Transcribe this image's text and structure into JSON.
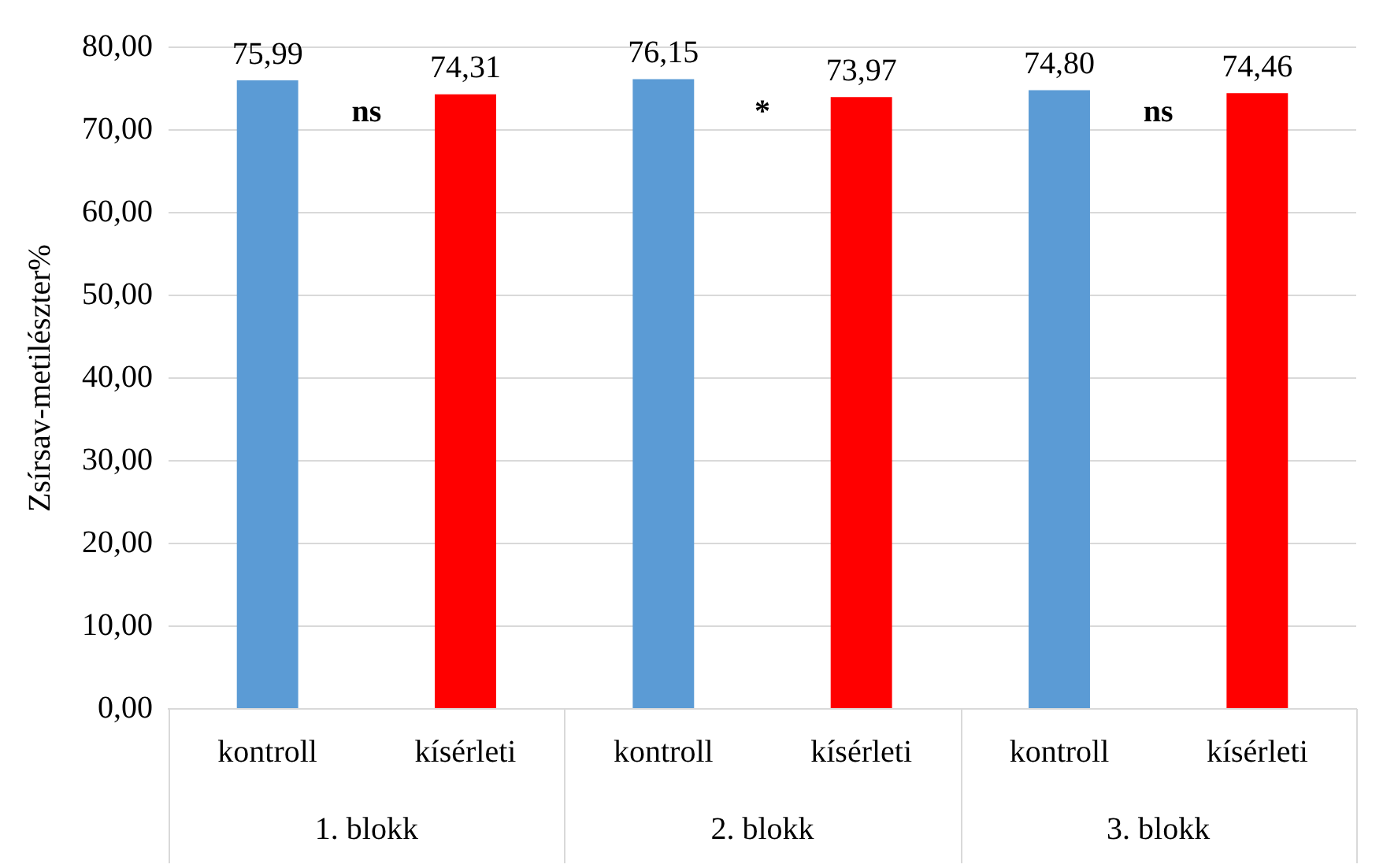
{
  "chart_data": {
    "type": "bar",
    "ylabel": "Zsírsav-metilészter%",
    "categories": [
      "kontroll",
      "kísérleti",
      "kontroll",
      "kísérleti",
      "kontroll",
      "kísérleti"
    ],
    "values": [
      75.99,
      74.31,
      76.15,
      73.97,
      74.8,
      74.46
    ],
    "colors": [
      "#5b9bd5",
      "#ff0000",
      "#5b9bd5",
      "#ff0000",
      "#5b9bd5",
      "#ff0000"
    ],
    "value_labels": [
      "75,99",
      "74,31",
      "76,15",
      "73,97",
      "74,80",
      "74,46"
    ],
    "ylim": [
      0,
      80
    ],
    "yticks": [
      {
        "value": 0,
        "label": "0,00"
      },
      {
        "value": 10,
        "label": "10,00"
      },
      {
        "value": 20,
        "label": "20,00"
      },
      {
        "value": 30,
        "label": "30,00"
      },
      {
        "value": 40,
        "label": "40,00"
      },
      {
        "value": 50,
        "label": "50,00"
      },
      {
        "value": 60,
        "label": "60,00"
      },
      {
        "value": 70,
        "label": "70,00"
      },
      {
        "value": 80,
        "label": "80,00"
      }
    ],
    "annotations": [
      "ns",
      "*",
      "ns",
      "1. blokk",
      "2. blokk",
      "3. blokk"
    ],
    "grid": "y",
    "legend": false
  }
}
